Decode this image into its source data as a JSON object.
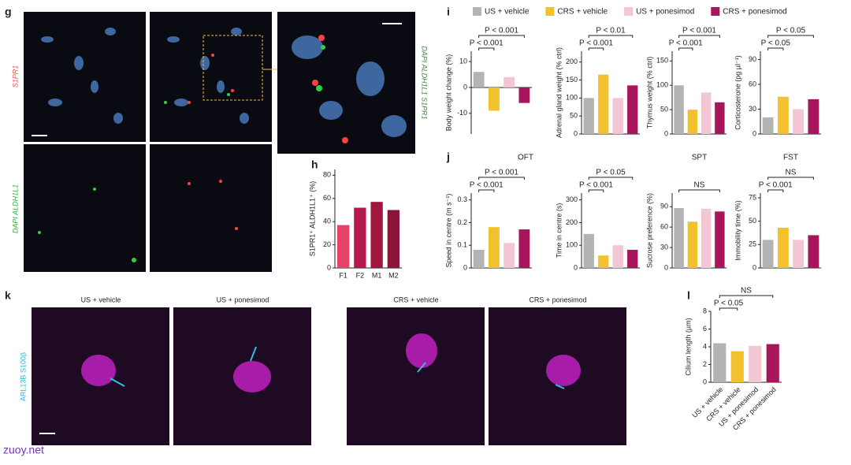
{
  "panel_labels": [
    "g",
    "h",
    "i",
    "j",
    "k",
    "l"
  ],
  "image_labels": {
    "g_left": "S1PR1",
    "g_left_bottom": "DAPI ALDH1L1",
    "g_zoom": "DAPI ALDH1L1 S1PR1",
    "k_stain": "ARL13B S100β",
    "k_titles": [
      "US + vehicle",
      "US + ponesimod",
      "CRS + vehicle",
      "CRS + ponesimod"
    ]
  },
  "legend": [
    {
      "name": "US + vehicle",
      "color": "#b3b3b3"
    },
    {
      "name": "CRS + vehicle",
      "color": "#f2c12e"
    },
    {
      "name": "US + ponesimod",
      "color": "#f2c6d3"
    },
    {
      "name": "CRS + ponesimod",
      "color": "#a8155b"
    }
  ],
  "watermark": "zuoy.net",
  "chart_data": [
    {
      "type": "bar",
      "ylabel": "Body weight change (%)",
      "values": [
        6,
        -9,
        4,
        -6
      ],
      "ylim": [
        -18,
        14
      ],
      "yticks": [
        -10,
        0,
        10
      ],
      "annotations": [
        "P < 0.001",
        "P < 0.001"
      ]
    },
    {
      "type": "bar",
      "ylabel": "Adrenal gland weight (% ctrl)",
      "values": [
        100,
        165,
        100,
        135
      ],
      "ylim": [
        0,
        230
      ],
      "yticks": [
        0,
        50,
        100,
        150,
        200
      ],
      "annotations": [
        "P < 0.01",
        "P < 0.001"
      ]
    },
    {
      "type": "bar",
      "ylabel": "Thymus weight (% ctrl)",
      "values": [
        100,
        50,
        85,
        65
      ],
      "ylim": [
        0,
        170
      ],
      "yticks": [
        0,
        50,
        100,
        150
      ],
      "annotations": [
        "P < 0.001",
        "P < 0.001"
      ]
    },
    {
      "type": "bar",
      "ylabel": "Corticosterone (pg µl⁻¹)",
      "values": [
        20,
        45,
        30,
        42
      ],
      "ylim": [
        0,
        100
      ],
      "yticks": [
        0,
        30,
        60,
        90
      ],
      "annotations": [
        "P < 0.05",
        "P < 0.05"
      ]
    },
    {
      "type": "bar",
      "title": "OFT",
      "ylabel": "Speed in centre (m s⁻¹)",
      "values": [
        0.08,
        0.18,
        0.11,
        0.17
      ],
      "ylim": [
        0,
        0.33
      ],
      "yticks": [
        0,
        0.1,
        0.2,
        0.3
      ],
      "annotations": [
        "P < 0.001",
        "P < 0.001"
      ]
    },
    {
      "type": "bar",
      "ylabel": "Time in centre (s)",
      "values": [
        150,
        55,
        100,
        80
      ],
      "ylim": [
        0,
        330
      ],
      "yticks": [
        0,
        100,
        200,
        300
      ],
      "annotations": [
        "P < 0.05",
        "P < 0.001"
      ]
    },
    {
      "type": "bar",
      "title": "SPT",
      "ylabel": "Sucrose preference (%)",
      "values": [
        88,
        68,
        87,
        83
      ],
      "ylim": [
        0,
        110
      ],
      "yticks": [
        0,
        30,
        60,
        90
      ],
      "annotations": [
        "NS"
      ]
    },
    {
      "type": "bar",
      "title": "FST",
      "ylabel": "Immobility time (%)",
      "values": [
        30,
        43,
        30,
        35
      ],
      "ylim": [
        0,
        80
      ],
      "yticks": [
        0,
        25,
        50,
        75
      ],
      "annotations": [
        "NS",
        "P < 0.001"
      ]
    },
    {
      "type": "bar",
      "ylabel": "S1PR1⁺ ALDH1L1⁺ (%)",
      "categories": [
        "F1",
        "F2",
        "M1",
        "M2"
      ],
      "colors": [
        "#e8426a",
        "#b5184a",
        "#a0163f",
        "#8a1538"
      ],
      "values": [
        37,
        52,
        57,
        50
      ],
      "ylim": [
        0,
        85
      ],
      "yticks": [
        0,
        20,
        40,
        60,
        80
      ]
    },
    {
      "type": "bar",
      "ylabel": "Cilium length (µm)",
      "categories": [
        "US + vehicle",
        "CRS + vehicle",
        "US + ponesimod",
        "CRS + ponesimod"
      ],
      "values": [
        4.4,
        3.5,
        4.1,
        4.3
      ],
      "ylim": [
        0,
        8
      ],
      "yticks": [
        0,
        2,
        4,
        6,
        8
      ],
      "annotations": [
        "NS",
        "P < 0.05"
      ]
    }
  ]
}
